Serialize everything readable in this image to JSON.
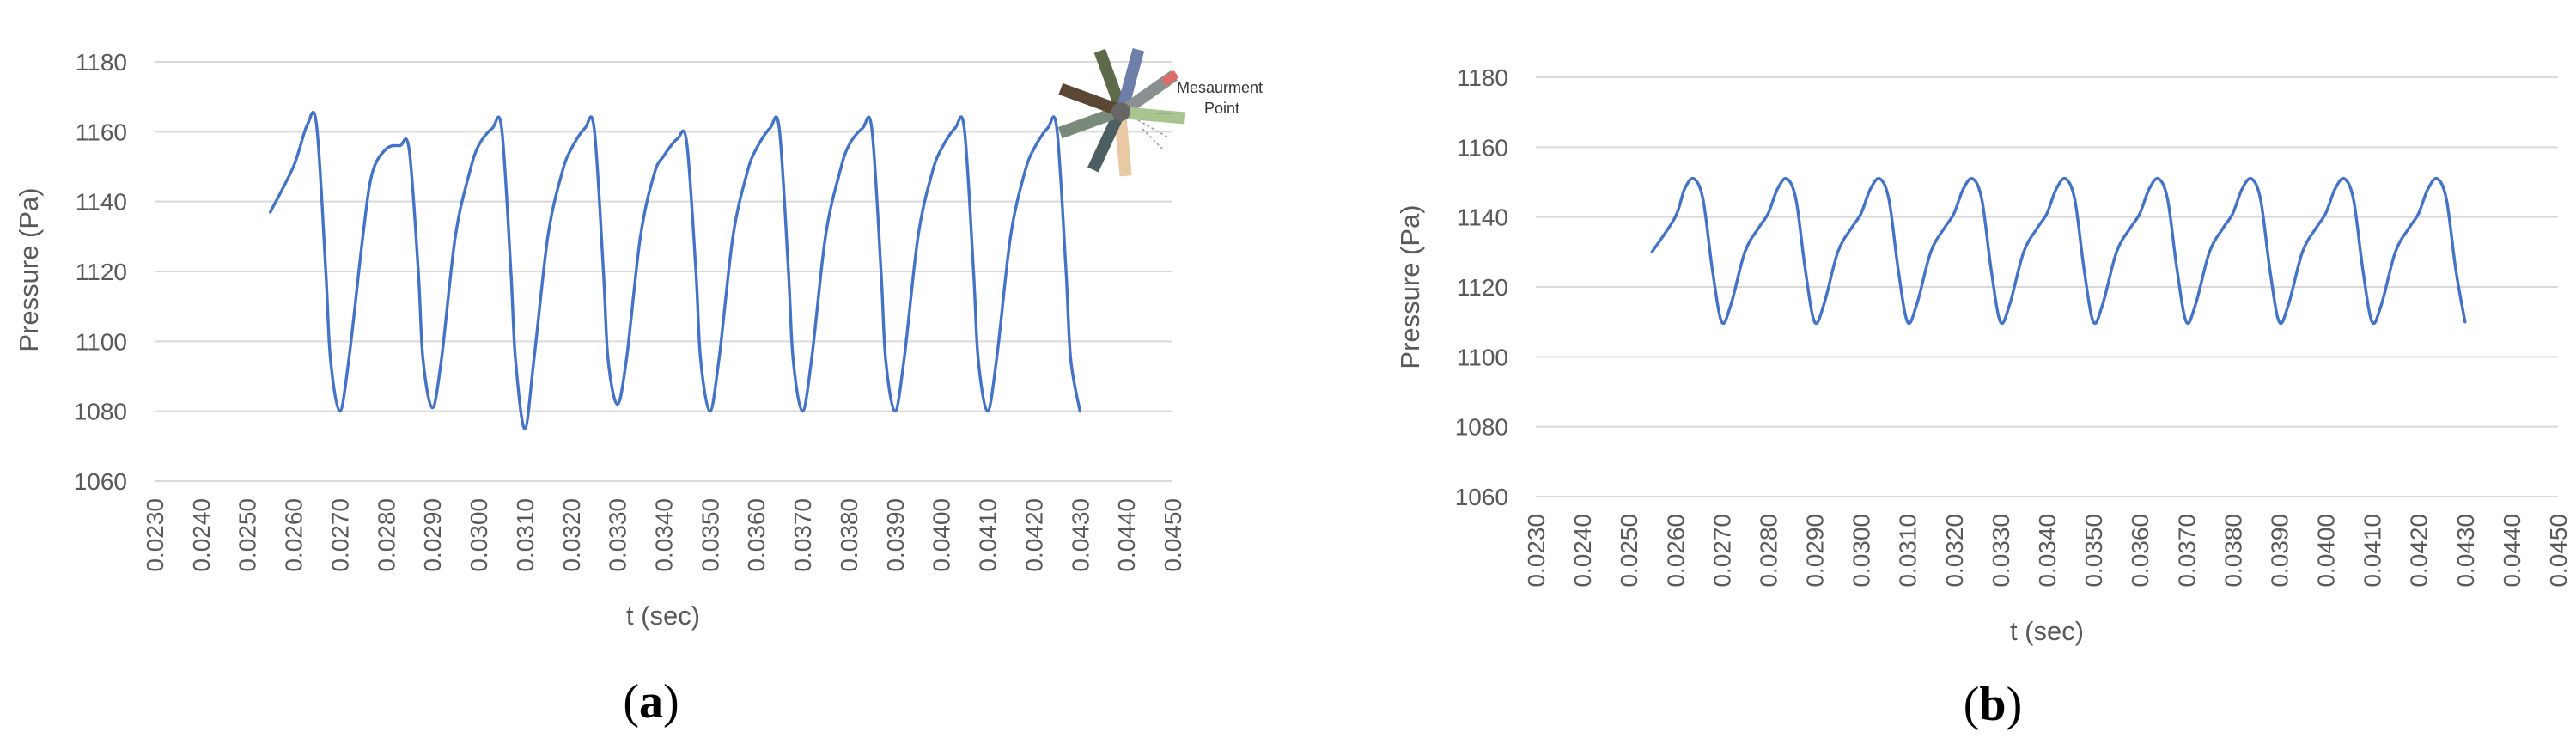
{
  "chart_data": [
    {
      "type": "line",
      "panel_label": "(a)",
      "panel_label_letter": "a",
      "xlabel": "t (sec)",
      "ylabel": "Pressure (Pa)",
      "ylim": [
        1060,
        1180
      ],
      "yticks": [
        1060,
        1080,
        1100,
        1120,
        1140,
        1160,
        1180
      ],
      "xticks": [
        "0.0230",
        "0.0240",
        "0.0250",
        "0.0260",
        "0.0270",
        "0.0280",
        "0.0290",
        "0.0300",
        "0.0310",
        "0.0320",
        "0.0330",
        "0.0340",
        "0.0350",
        "0.0360",
        "0.0370",
        "0.0380",
        "0.0390",
        "0.0400",
        "0.0410",
        "0.0420",
        "0.0430",
        "0.0440",
        "0.0450"
      ],
      "grid": "horizontal",
      "line_color": "#4472C4",
      "inset_label": [
        "Mesaurment",
        "Point"
      ],
      "series": [
        {
          "x": [
            0.0255,
            0.026,
            0.0263,
            0.0265,
            0.0267,
            0.0268,
            0.027,
            0.0272,
            0.0275,
            0.0277,
            0.028,
            0.0283,
            0.0285,
            0.0287,
            0.0288,
            0.029,
            0.0292,
            0.0295,
            0.0298,
            0.03,
            0.0303,
            0.0305,
            0.0307,
            0.0308,
            0.031,
            0.0312,
            0.0315,
            0.0318,
            0.032,
            0.0323,
            0.0325,
            0.0327,
            0.0328,
            0.033,
            0.0332,
            0.0335,
            0.0338,
            0.034,
            0.0343,
            0.0345,
            0.0347,
            0.0348,
            0.035,
            0.0352,
            0.0355,
            0.0358,
            0.036,
            0.0363,
            0.0365,
            0.0367,
            0.0368,
            0.037,
            0.0372,
            0.0375,
            0.0378,
            0.038,
            0.0383,
            0.0385,
            0.0387,
            0.0388,
            0.039,
            0.0392,
            0.0395,
            0.0398,
            0.04,
            0.0403,
            0.0405,
            0.0407,
            0.0408,
            0.041,
            0.0412,
            0.0415,
            0.0418,
            0.042,
            0.0423,
            0.0425,
            0.0427,
            0.0428,
            0.043
          ],
          "y": [
            1137,
            1150,
            1162,
            1162,
            1120,
            1095,
            1080,
            1095,
            1130,
            1148,
            1155,
            1156,
            1155,
            1120,
            1095,
            1081,
            1095,
            1130,
            1148,
            1156,
            1161,
            1161,
            1120,
            1095,
            1075,
            1095,
            1130,
            1148,
            1155,
            1161,
            1161,
            1120,
            1095,
            1082,
            1095,
            1130,
            1148,
            1153,
            1158,
            1157,
            1120,
            1095,
            1080,
            1095,
            1130,
            1148,
            1155,
            1161,
            1161,
            1120,
            1095,
            1080,
            1095,
            1130,
            1148,
            1156,
            1161,
            1161,
            1120,
            1095,
            1080,
            1095,
            1130,
            1148,
            1155,
            1161,
            1161,
            1120,
            1095,
            1080,
            1095,
            1130,
            1148,
            1155,
            1161,
            1161,
            1120,
            1095,
            1080
          ]
        }
      ]
    },
    {
      "type": "line",
      "panel_label": "(b)",
      "panel_label_letter": "b",
      "xlabel": "t (sec)",
      "ylabel": "Pressure (Pa)",
      "ylim": [
        1060,
        1180
      ],
      "yticks": [
        1060,
        1080,
        1100,
        1120,
        1140,
        1160,
        1180
      ],
      "xticks": [
        "0.0230",
        "0.0240",
        "0.0250",
        "0.0260",
        "0.0270",
        "0.0280",
        "0.0290",
        "0.0300",
        "0.0310",
        "0.0320",
        "0.0330",
        "0.0340",
        "0.0350",
        "0.0360",
        "0.0370",
        "0.0380",
        "0.0390",
        "0.0400",
        "0.0410",
        "0.0420",
        "0.0430",
        "0.0440",
        "0.0450"
      ],
      "grid": "horizontal",
      "line_color": "#4472C4",
      "series": [
        {
          "x": [
            0.0255,
            0.026,
            0.0262,
            0.0264,
            0.0266,
            0.0268,
            0.027,
            0.0272,
            0.0275,
            0.0278,
            0.028,
            0.0282,
            0.0284,
            0.0286,
            0.0288,
            0.029,
            0.0292,
            0.0295,
            0.0298,
            0.03,
            0.0302,
            0.0304,
            0.0306,
            0.0308,
            0.031,
            0.0312,
            0.0315,
            0.0318,
            0.032,
            0.0322,
            0.0324,
            0.0326,
            0.0328,
            0.033,
            0.0332,
            0.0335,
            0.0338,
            0.034,
            0.0342,
            0.0344,
            0.0346,
            0.0348,
            0.035,
            0.0352,
            0.0355,
            0.0358,
            0.036,
            0.0362,
            0.0364,
            0.0366,
            0.0368,
            0.037,
            0.0372,
            0.0375,
            0.0378,
            0.038,
            0.0382,
            0.0384,
            0.0386,
            0.0388,
            0.039,
            0.0392,
            0.0395,
            0.0398,
            0.04,
            0.0402,
            0.0404,
            0.0406,
            0.0408,
            0.041,
            0.0412,
            0.0415,
            0.0418,
            0.042,
            0.0422,
            0.0424,
            0.0426,
            0.0428,
            0.043
          ],
          "y": [
            1130,
            1140,
            1148,
            1151,
            1145,
            1125,
            1110,
            1115,
            1130,
            1137,
            1141,
            1148,
            1151,
            1145,
            1125,
            1110,
            1115,
            1130,
            1137,
            1141,
            1148,
            1151,
            1145,
            1125,
            1110,
            1115,
            1130,
            1137,
            1141,
            1148,
            1151,
            1145,
            1125,
            1110,
            1115,
            1130,
            1137,
            1141,
            1148,
            1151,
            1145,
            1125,
            1110,
            1115,
            1130,
            1137,
            1141,
            1148,
            1151,
            1145,
            1125,
            1110,
            1115,
            1130,
            1137,
            1141,
            1148,
            1151,
            1145,
            1125,
            1110,
            1115,
            1130,
            1137,
            1141,
            1148,
            1151,
            1145,
            1125,
            1110,
            1115,
            1130,
            1137,
            1141,
            1148,
            1151,
            1145,
            1125,
            1110
          ]
        }
      ]
    }
  ]
}
